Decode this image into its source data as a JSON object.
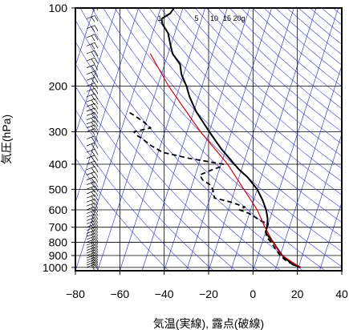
{
  "chart_data": {
    "type": "line",
    "subtype": "skew-T log-P thermodynamic diagram",
    "title": "",
    "xlabel": "気温(実線), 露点(破線)",
    "ylabel": "気圧(hPa)",
    "xlim": [
      -80,
      40
    ],
    "ylim": [
      1030,
      100
    ],
    "yscale": "log",
    "skew_per_decade": 105,
    "grid": true,
    "x_ticks": [
      -80,
      -60,
      -40,
      -20,
      0,
      20,
      40
    ],
    "x_tick_labels": [
      "−80",
      "−60",
      "−40",
      "−20",
      "0",
      "20",
      "40"
    ],
    "y_ticks": [
      100,
      200,
      300,
      400,
      500,
      600,
      700,
      800,
      900,
      1000
    ],
    "y_tick_labels": [
      "100",
      "200",
      "300",
      "400",
      "500",
      "600",
      "700",
      "800",
      "900",
      "1000"
    ],
    "mixing_ratio_labels": [
      "1",
      "5",
      "10",
      "15",
      "20g"
    ],
    "colors": {
      "isotherm": "#2020d0",
      "adiabat": "#3a3ae0",
      "parcel": "#e00000",
      "profile": "#000000",
      "frame": "#000000"
    },
    "series": [
      {
        "style": "solid",
        "points": [
          {
            "p": 1000,
            "t": 21
          },
          {
            "p": 975,
            "t": 17
          },
          {
            "p": 950,
            "t": 15
          },
          {
            "p": 925,
            "t": 13
          },
          {
            "p": 900,
            "t": 11
          },
          {
            "p": 850,
            "t": 8
          },
          {
            "p": 800,
            "t": 5
          },
          {
            "p": 760,
            "t": 2
          },
          {
            "p": 730,
            "t": 0
          },
          {
            "p": 700,
            "t": 0
          },
          {
            "p": 650,
            "t": -1
          },
          {
            "p": 600,
            "t": -3
          },
          {
            "p": 550,
            "t": -6
          },
          {
            "p": 500,
            "t": -10
          },
          {
            "p": 450,
            "t": -16
          },
          {
            "p": 420,
            "t": -21
          },
          {
            "p": 400,
            "t": -24
          },
          {
            "p": 380,
            "t": -27
          },
          {
            "p": 350,
            "t": -32
          },
          {
            "p": 300,
            "t": -40
          },
          {
            "p": 250,
            "t": -49
          },
          {
            "p": 220,
            "t": -54
          },
          {
            "p": 200,
            "t": -57
          },
          {
            "p": 180,
            "t": -61
          },
          {
            "p": 165,
            "t": -63
          },
          {
            "p": 150,
            "t": -68
          },
          {
            "p": 140,
            "t": -70
          },
          {
            "p": 125,
            "t": -73
          },
          {
            "p": 115,
            "t": -77
          },
          {
            "p": 110,
            "t": -78
          },
          {
            "p": 105,
            "t": -75
          },
          {
            "p": 100,
            "t": -74
          }
        ]
      },
      {
        "style": "dashed",
        "points": [
          {
            "p": 1000,
            "t": 21
          },
          {
            "p": 950,
            "t": 14
          },
          {
            "p": 900,
            "t": 10
          },
          {
            "p": 850,
            "t": 7
          },
          {
            "p": 800,
            "t": 4
          },
          {
            "p": 760,
            "t": 1
          },
          {
            "p": 720,
            "t": 0
          },
          {
            "p": 700,
            "t": 0
          },
          {
            "p": 680,
            "t": 0
          },
          {
            "p": 660,
            "t": -4
          },
          {
            "p": 620,
            "t": -10
          },
          {
            "p": 600,
            "t": -15
          },
          {
            "p": 585,
            "t": -13
          },
          {
            "p": 560,
            "t": -20
          },
          {
            "p": 540,
            "t": -28
          },
          {
            "p": 500,
            "t": -30
          },
          {
            "p": 480,
            "t": -32
          },
          {
            "p": 460,
            "t": -36
          },
          {
            "p": 440,
            "t": -38
          },
          {
            "p": 420,
            "t": -33
          },
          {
            "p": 410,
            "t": -30
          },
          {
            "p": 400,
            "t": -29
          },
          {
            "p": 380,
            "t": -45
          },
          {
            "p": 360,
            "t": -58
          },
          {
            "p": 340,
            "t": -64
          },
          {
            "p": 320,
            "t": -69
          },
          {
            "p": 310,
            "t": -72
          },
          {
            "p": 300,
            "t": -74
          },
          {
            "p": 290,
            "t": -67
          },
          {
            "p": 275,
            "t": -71
          },
          {
            "p": 260,
            "t": -76
          },
          {
            "p": 250,
            "t": -80
          }
        ]
      },
      {
        "style": "solid-red",
        "points": [
          {
            "p": 1000,
            "t": 21
          },
          {
            "p": 950,
            "t": 16
          },
          {
            "p": 900,
            "t": 11
          },
          {
            "p": 850,
            "t": 8
          },
          {
            "p": 800,
            "t": 5
          },
          {
            "p": 700,
            "t": -1
          },
          {
            "p": 600,
            "t": -7
          },
          {
            "p": 500,
            "t": -16
          },
          {
            "p": 400,
            "t": -27
          },
          {
            "p": 300,
            "t": -44
          },
          {
            "p": 200,
            "t": -65
          },
          {
            "p": 150,
            "t": -78
          }
        ]
      }
    ],
    "wind_barbs_pressures": [
      1000,
      980,
      960,
      940,
      920,
      900,
      880,
      860,
      840,
      820,
      800,
      780,
      760,
      740,
      720,
      700,
      680,
      660,
      640,
      620,
      600,
      580,
      560,
      540,
      520,
      500,
      480,
      460,
      440,
      420,
      400,
      380,
      360,
      340,
      320,
      300,
      290,
      280,
      270,
      260,
      250,
      240,
      230,
      220,
      210,
      200,
      190,
      180,
      170,
      160,
      150,
      140,
      130,
      120,
      110,
      100
    ]
  }
}
